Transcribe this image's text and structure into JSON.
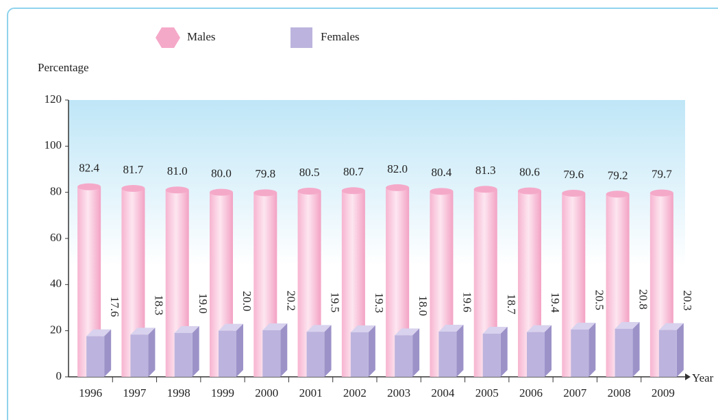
{
  "chart_data": {
    "type": "bar",
    "y_label": "Percentage",
    "x_label": "Year",
    "categories": [
      "1996",
      "1997",
      "1998",
      "1999",
      "2000",
      "2001",
      "2002",
      "2003",
      "2004",
      "2005",
      "2006",
      "2007",
      "2008",
      "2009"
    ],
    "series": [
      {
        "name": "Males",
        "color": "#f5a9c9",
        "values": [
          82.4,
          81.7,
          81.0,
          80.0,
          79.8,
          80.5,
          80.7,
          82.0,
          80.4,
          81.3,
          80.6,
          79.6,
          79.2,
          79.7
        ],
        "value_labels": [
          "82.4",
          "81.7",
          "81.0",
          "80.0",
          "79.8",
          "80.5",
          "80.7",
          "82.0",
          "80.4",
          "81.3",
          "80.6",
          "79.6",
          "79.2",
          "79.7"
        ]
      },
      {
        "name": "Females",
        "color": "#bcb4de",
        "values": [
          17.6,
          18.3,
          19.0,
          20.0,
          20.2,
          19.5,
          19.3,
          18.0,
          19.6,
          18.7,
          19.4,
          20.5,
          20.8,
          20.3
        ],
        "value_labels": [
          "17.6",
          "18.3",
          "19.0",
          "20.0",
          "20.2",
          "19.5",
          "19.3",
          "18.0",
          "19.6",
          "18.7",
          "19.4",
          "20.5",
          "20.8",
          "20.3"
        ]
      }
    ],
    "ylim": [
      0,
      120
    ],
    "yticks": [
      0,
      20,
      40,
      60,
      80,
      100,
      120
    ],
    "legend": "top"
  }
}
